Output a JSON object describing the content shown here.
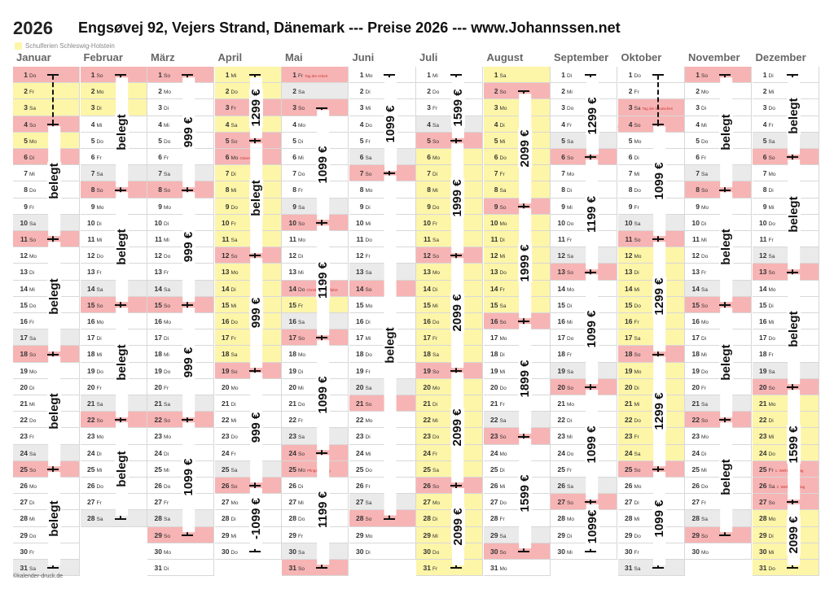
{
  "year": "2026",
  "title": "Engsøvej 92, Vejers Strand, Dänemark --- Preise 2026 ---  www.Johannssen.net",
  "legend": "Schulferien Schleswig-Holstein",
  "footer": "©kalender-druck.de",
  "months": [
    {
      "name": "Januar",
      "days": 31,
      "start": 4,
      "holidays": {
        "1": "",
        "6": ""
      },
      "school": [
        1,
        2,
        3,
        4,
        5,
        6
      ],
      "segments": [
        {
          "from": 1,
          "to": 4,
          "label": ""
        },
        {
          "from": 4,
          "to": 11,
          "label": "belegt"
        },
        {
          "from": 11,
          "to": 18,
          "label": "belegt"
        },
        {
          "from": 18,
          "to": 25,
          "label": "belegt"
        },
        {
          "from": 25,
          "to": 31,
          "label": "belegt"
        }
      ]
    },
    {
      "name": "Februar",
      "days": 28,
      "start": 0,
      "holidays": {},
      "school": [
        2,
        3
      ],
      "segments": [
        {
          "from": 1,
          "to": 8,
          "label": "belegt"
        },
        {
          "from": 8,
          "to": 15,
          "label": "belegt"
        },
        {
          "from": 15,
          "to": 22,
          "label": "belegt"
        },
        {
          "from": 22,
          "to": 28,
          "label": "belegt"
        }
      ]
    },
    {
      "name": "März",
      "days": 31,
      "start": 0,
      "holidays": {},
      "school": [],
      "segments": [
        {
          "from": 1,
          "to": 8,
          "label": "999 €"
        },
        {
          "from": 8,
          "to": 15,
          "label": "999 €"
        },
        {
          "from": 15,
          "to": 22,
          "label": "999 €"
        },
        {
          "from": 22,
          "to": 29,
          "label": "1099 €"
        }
      ]
    },
    {
      "name": "April",
      "days": 30,
      "start": 3,
      "holidays": {
        "3": "",
        "6": "Ostermontag"
      },
      "school": [
        1,
        2,
        3,
        4,
        5,
        6,
        7,
        8,
        9,
        10,
        11,
        12,
        13,
        14,
        15,
        16,
        17,
        18
      ],
      "segments": [
        {
          "from": 1,
          "to": 5,
          "label": "1299 €"
        },
        {
          "from": 5,
          "to": 12,
          "label": "belegt"
        },
        {
          "from": 12,
          "to": 19,
          "label": "999 €"
        },
        {
          "from": 19,
          "to": 26,
          "label": "999 €"
        },
        {
          "from": 26,
          "to": 30,
          "label": "-1099 €"
        }
      ]
    },
    {
      "name": "Mai",
      "days": 31,
      "start": 5,
      "holidays": {
        "1": "Tag der Arbeit",
        "14": "Christi Himmelfahrt",
        "25": "Pfingstmontag"
      },
      "school": [
        15
      ],
      "segments": [
        {
          "from": 3,
          "to": 10,
          "label": "1099 €"
        },
        {
          "from": 10,
          "to": 17,
          "label": "1199 €"
        },
        {
          "from": 17,
          "to": 24,
          "label": "1099 €"
        },
        {
          "from": 24,
          "to": 31,
          "label": "1199 €"
        }
      ]
    },
    {
      "name": "Juni",
      "days": 30,
      "start": 1,
      "holidays": {},
      "school": [],
      "segments": [
        {
          "from": 1,
          "to": 7,
          "label": "1099 €"
        },
        {
          "from": 7,
          "to": 28,
          "label": "belegt"
        }
      ]
    },
    {
      "name": "Juli",
      "days": 31,
      "start": 3,
      "holidays": {},
      "school": [
        6,
        7,
        8,
        9,
        10,
        11,
        12,
        13,
        14,
        15,
        16,
        17,
        18,
        19,
        20,
        21,
        22,
        23,
        24,
        25,
        26,
        27,
        28,
        29,
        30,
        31
      ],
      "segments": [
        {
          "from": 1,
          "to": 5,
          "label": "1599 €"
        },
        {
          "from": 5,
          "to": 12,
          "label": "1999 €"
        },
        {
          "from": 12,
          "to": 19,
          "label": "2099 €"
        },
        {
          "from": 19,
          "to": 26,
          "label": "2099 €"
        },
        {
          "from": 26,
          "to": 31,
          "label": "2099 €"
        }
      ]
    },
    {
      "name": "August",
      "days": 31,
      "start": 6,
      "holidays": {},
      "school": [
        1,
        2,
        3,
        4,
        5,
        6,
        7,
        8,
        9,
        10,
        11,
        12,
        13,
        14,
        15
      ],
      "segments": [
        {
          "from": 2,
          "to": 9,
          "label": "2099 €"
        },
        {
          "from": 9,
          "to": 16,
          "label": "1999 €"
        },
        {
          "from": 16,
          "to": 23,
          "label": "1899 €"
        },
        {
          "from": 23,
          "to": 30,
          "label": "1599 €"
        }
      ]
    },
    {
      "name": "September",
      "days": 30,
      "start": 2,
      "holidays": {},
      "school": [],
      "segments": [
        {
          "from": 1,
          "to": 6,
          "label": "1299 €"
        },
        {
          "from": 6,
          "to": 13,
          "label": "1199 €"
        },
        {
          "from": 13,
          "to": 20,
          "label": "1099 €"
        },
        {
          "from": 20,
          "to": 27,
          "label": "1099 €"
        },
        {
          "from": 27,
          "to": 30,
          "label": "1099€"
        }
      ]
    },
    {
      "name": "Oktober",
      "days": 31,
      "start": 4,
      "holidays": {
        "3": "Tag der Deutschen Einheit"
      },
      "school": [
        12,
        13,
        14,
        15,
        16,
        17,
        18,
        19,
        20,
        21,
        22,
        23,
        24
      ],
      "segments": [
        {
          "from": 1,
          "to": 4,
          "label": ""
        },
        {
          "from": 4,
          "to": 11,
          "label": "1099 €"
        },
        {
          "from": 11,
          "to": 18,
          "label": "1299 €"
        },
        {
          "from": 18,
          "to": 25,
          "label": "1299 €"
        },
        {
          "from": 25,
          "to": 31,
          "label": "1099 €"
        }
      ]
    },
    {
      "name": "November",
      "days": 30,
      "start": 0,
      "holidays": {},
      "school": [],
      "segments": [
        {
          "from": 1,
          "to": 8,
          "label": "belegt"
        },
        {
          "from": 8,
          "to": 15,
          "label": "belegt"
        },
        {
          "from": 15,
          "to": 22,
          "label": "belegt"
        },
        {
          "from": 22,
          "to": 29,
          "label": "belegt"
        }
      ]
    },
    {
      "name": "Dezember",
      "days": 31,
      "start": 2,
      "holidays": {
        "25": "1. Weihnachtstag",
        "26": "2. Weihnachtstag"
      },
      "school": [
        21,
        22,
        23,
        24,
        25,
        26,
        27,
        28,
        29,
        30,
        31
      ],
      "segments": [
        {
          "from": 1,
          "to": 6,
          "label": "belegt"
        },
        {
          "from": 6,
          "to": 13,
          "label": "belegt"
        },
        {
          "from": 13,
          "to": 20,
          "label": "belegt"
        },
        {
          "from": 20,
          "to": 27,
          "label": "1599 €"
        },
        {
          "from": 27,
          "to": 31,
          "label": "2099 €"
        }
      ]
    }
  ],
  "weekdays": [
    "So",
    "Mo",
    "Di",
    "Mi",
    "Do",
    "Fr",
    "Sa"
  ]
}
